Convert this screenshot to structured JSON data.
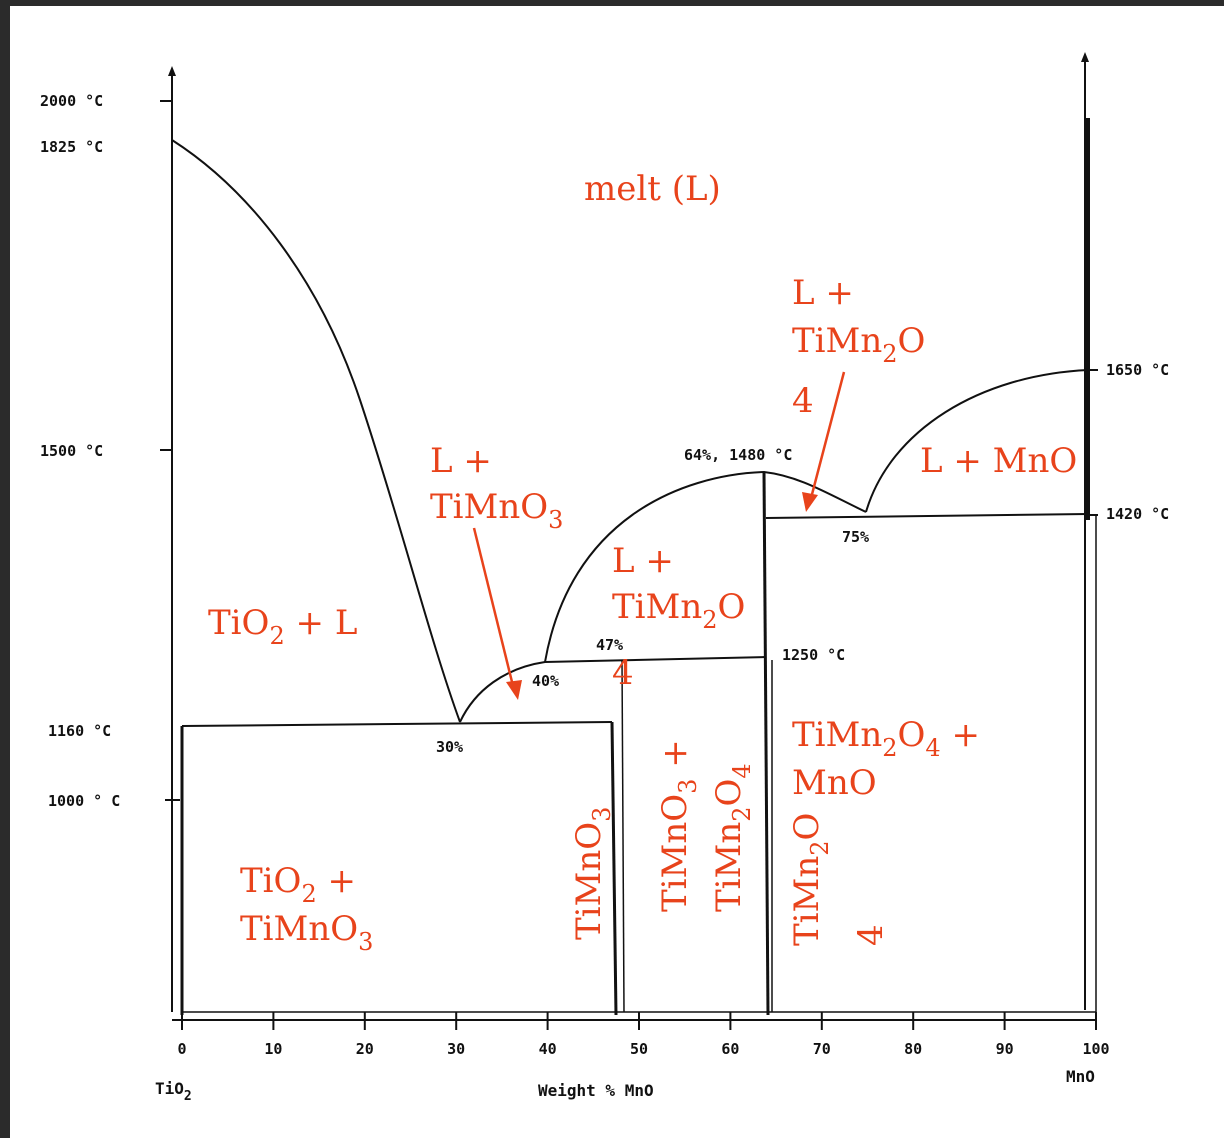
{
  "colors": {
    "phase_label": "#e8431b",
    "line": "#111111",
    "background": "#ffffff",
    "frame": "#2b2b2b"
  },
  "axis": {
    "x_title": "Weight % MnO",
    "left_component": "TiO",
    "left_component_sub": "2",
    "right_component": "MnO",
    "x_ticks": [
      0,
      10,
      20,
      30,
      40,
      50,
      60,
      70,
      80,
      90,
      100
    ],
    "x_tick_labels": [
      "0",
      "10",
      "20",
      "30",
      "40",
      "50",
      "60",
      "70",
      "80",
      "90",
      "100"
    ],
    "left_temps": [
      "2000 °C",
      "1825 °C",
      "1500 °C",
      "1160 °C",
      "1000 ° C"
    ],
    "right_temps": [
      "1650 °C",
      "1420 °C"
    ],
    "inner_temp": "1250 °C"
  },
  "points": {
    "eutectic_30": "30%",
    "point_40": "40%",
    "point_47": "47%",
    "max_64": "64%, 1480 °C",
    "eutectic_75": "75%"
  },
  "phases": {
    "melt": "melt (L)",
    "tio2_l": {
      "a": "TiO",
      "sub": "2",
      "b": " + L"
    },
    "l_timno3": {
      "l1": "L +",
      "l2a": "TiMnO",
      "l2sub": "3"
    },
    "l_timn2o4_low": {
      "l1": "L +",
      "l2a": "TiMn",
      "l2sub": "2",
      "l2b": "O",
      "l3": "4"
    },
    "l_timn2o4_high": {
      "l1": "L +",
      "l2a": "TiMn",
      "l2sub": "2",
      "l2b": "O",
      "l3": "4"
    },
    "l_mno": "L + MnO",
    "tio2_timno3": {
      "l1a": "TiO",
      "l1sub": "2",
      "l1b": " +",
      "l2a": "TiMnO",
      "l2sub": "3"
    },
    "timno3": {
      "a": "TiMnO",
      "sub": "3"
    },
    "timno3_timn2o4": {
      "l1a": "TiMnO",
      "l1sub": "3",
      "l1b": " +",
      "l2a": "TiMn",
      "l2sub": "2",
      "l2b": "O",
      "l2sub2": "4"
    },
    "timn2o4_v": {
      "a": "TiMn",
      "sub": "2",
      "b": "O",
      "c": "4"
    },
    "timn2o4_mno": {
      "l1a": "TiMn",
      "l1sub": "2",
      "l1b": "O",
      "l1sub2": "4",
      "l1c": " +",
      "l2": "MnO"
    }
  }
}
